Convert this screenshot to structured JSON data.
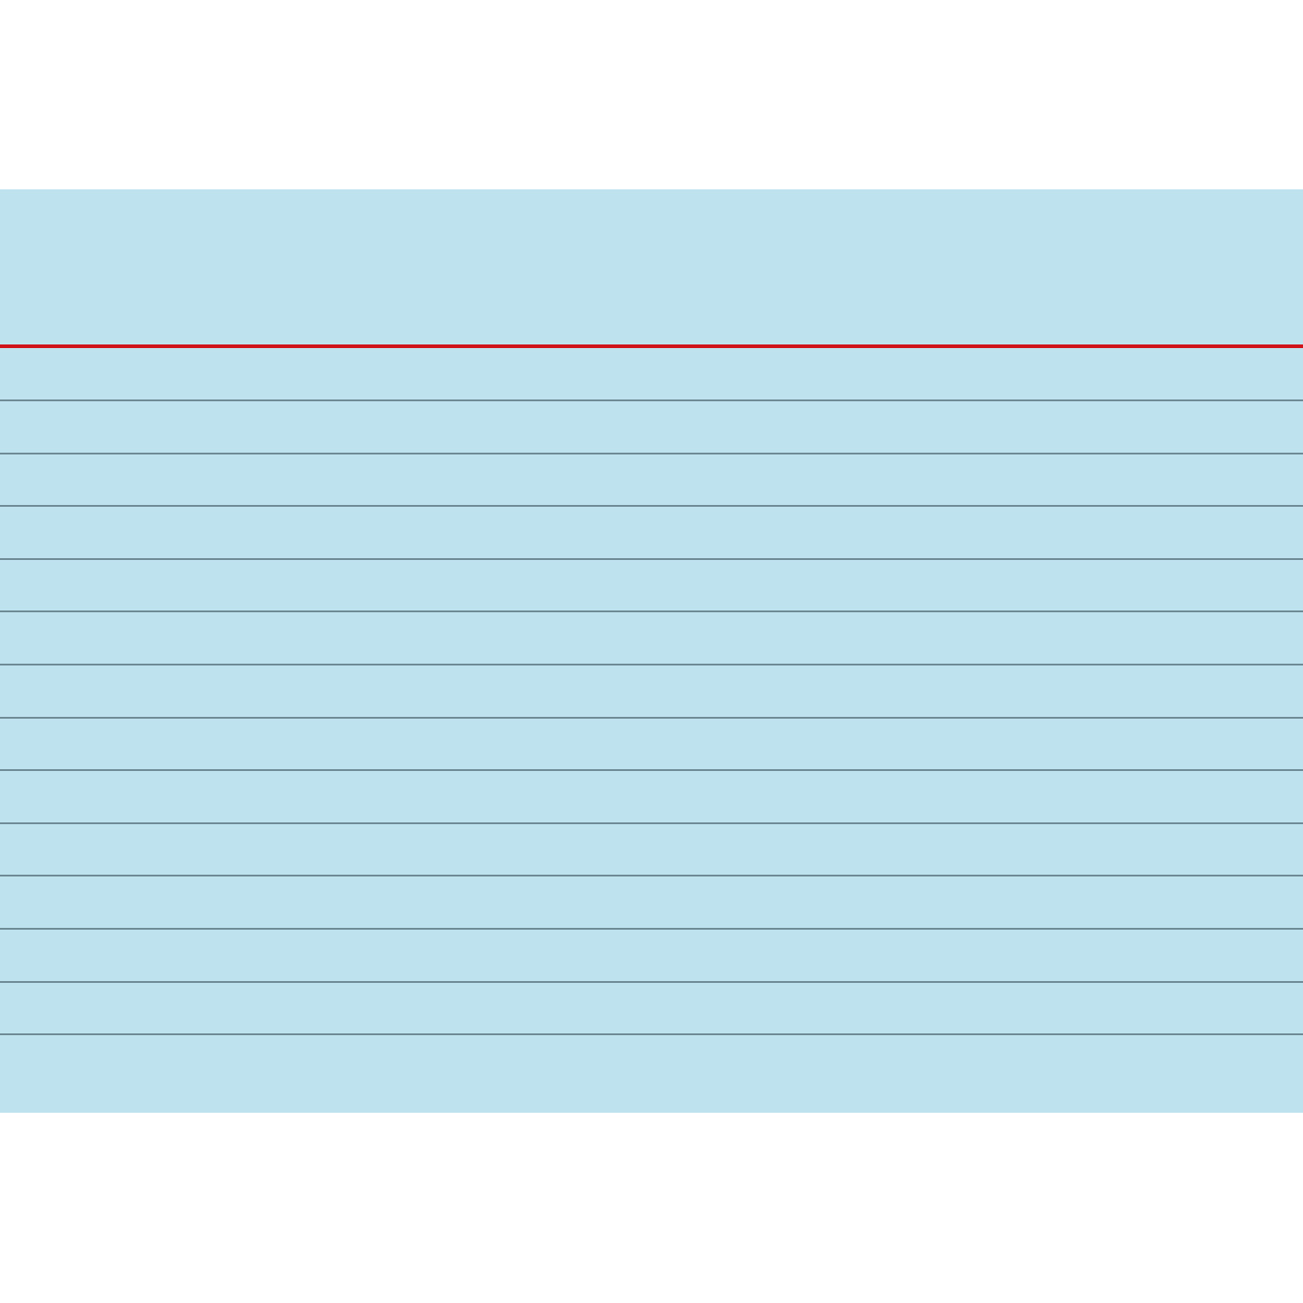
{
  "card": {
    "background_color": "#bee3ee",
    "header_rule_color": "#d0131b",
    "line_color": "#6e8a94",
    "ruled_line_count": 13
  }
}
